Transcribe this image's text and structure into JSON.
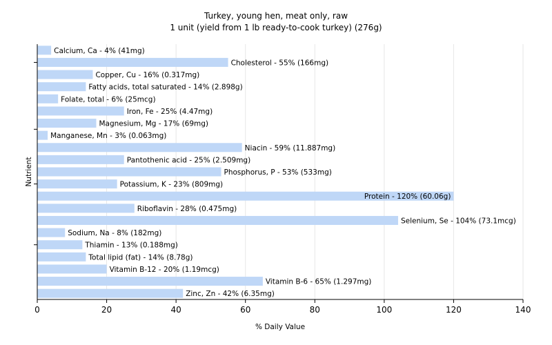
{
  "chart_data": {
    "type": "bar",
    "orientation": "horizontal",
    "title": "Turkey, young hen, meat only, raw",
    "subtitle": "1 unit (yield from 1 lb ready-to-cook turkey) (276g)",
    "xlabel": "% Daily Value",
    "ylabel": "Nutrient",
    "xlim": [
      0,
      140
    ],
    "xticks": [
      0,
      20,
      40,
      60,
      80,
      100,
      120,
      140
    ],
    "grid": true,
    "bar_color": "#bfd7f7",
    "categories": [
      "Calcium, Ca",
      "Cholesterol",
      "Copper, Cu",
      "Fatty acids, total saturated",
      "Folate, total",
      "Iron, Fe",
      "Magnesium, Mg",
      "Manganese, Mn",
      "Niacin",
      "Pantothenic acid",
      "Phosphorus, P",
      "Potassium, K",
      "Protein",
      "Riboflavin",
      "Selenium, Se",
      "Sodium, Na",
      "Thiamin",
      "Total lipid (fat)",
      "Vitamin B-12",
      "Vitamin B-6",
      "Zinc, Zn"
    ],
    "values": [
      4,
      55,
      16,
      14,
      6,
      25,
      17,
      3,
      59,
      25,
      53,
      23,
      120,
      28,
      104,
      8,
      13,
      14,
      20,
      65,
      42
    ],
    "labels": [
      "Calcium, Ca - 4% (41mg)",
      "Cholesterol - 55% (166mg)",
      "Copper, Cu - 16% (0.317mg)",
      "Fatty acids, total saturated - 14% (2.898g)",
      "Folate, total - 6% (25mcg)",
      "Iron, Fe - 25% (4.47mg)",
      "Magnesium, Mg - 17% (69mg)",
      "Manganese, Mn - 3% (0.063mg)",
      "Niacin - 59% (11.887mg)",
      "Pantothenic acid - 25% (2.509mg)",
      "Phosphorus, P - 53% (533mg)",
      "Potassium, K - 23% (809mg)",
      "Protein - 120% (60.06g)",
      "Riboflavin - 28% (0.475mg)",
      "Selenium, Se - 104% (73.1mcg)",
      "Sodium, Na - 8% (182mg)",
      "Thiamin - 13% (0.188mg)",
      "Total lipid (fat) - 14% (8.78g)",
      "Vitamin B-12 - 20% (1.19mcg)",
      "Vitamin B-6 - 65% (1.297mg)",
      "Zinc, Zn - 42% (6.35mg)"
    ]
  }
}
